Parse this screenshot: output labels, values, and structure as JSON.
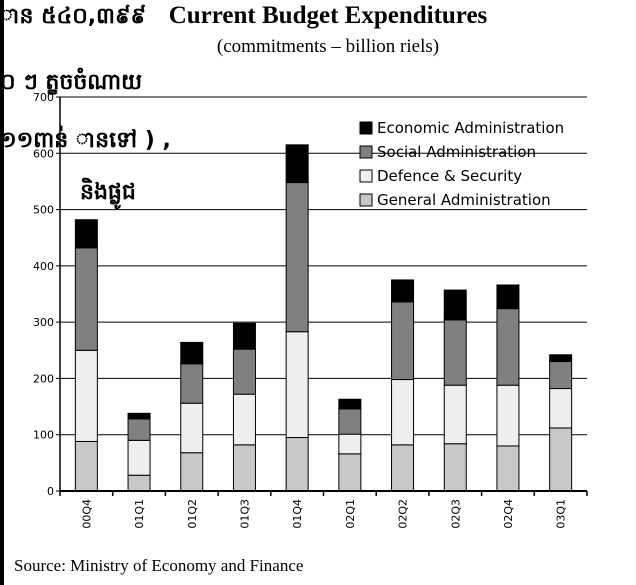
{
  "overlay": {
    "line1": "ាន ៥៤០,៣៩៩",
    "line2": "០ ៗ ត្ខចចំណាយ",
    "line3": "១១ពាន់   ានទៅ     ) ,",
    "line4": "និងផ្លូជ"
  },
  "source": "Source: Ministry of Economy and Finance",
  "colors": {
    "economic": "#000000",
    "social": "#808080",
    "defence": "#eeeeee",
    "general": "#c8c8c8"
  },
  "chart_data": {
    "type": "bar",
    "stacked": true,
    "title": "Current Budget Expenditures",
    "subtitle": "(commitments – billion riels)",
    "categories": [
      "00Q4",
      "01Q1",
      "01Q2",
      "01Q3",
      "01Q4",
      "02Q1",
      "02Q2",
      "02Q3",
      "02Q4",
      "03Q1"
    ],
    "series": [
      {
        "name": "General Administration",
        "values": [
          88,
          28,
          68,
          82,
          95,
          66,
          82,
          84,
          80,
          112
        ]
      },
      {
        "name": "Defence & Security",
        "values": [
          162,
          62,
          88,
          90,
          188,
          35,
          116,
          104,
          108,
          70
        ]
      },
      {
        "name": "Social Administration",
        "values": [
          182,
          38,
          70,
          80,
          265,
          45,
          138,
          116,
          136,
          48
        ]
      },
      {
        "name": "Economic Administration",
        "values": [
          50,
          10,
          38,
          46,
          67,
          17,
          39,
          53,
          42,
          12
        ]
      }
    ],
    "legend_order": [
      "Economic Administration",
      "Social Administration",
      "Defence & Security",
      "General Administration"
    ],
    "yticks": [
      "0",
      "100",
      "200",
      "300",
      "400",
      "500",
      "600",
      "700"
    ],
    "ylim": [
      0,
      700
    ],
    "grid": true,
    "legend": "top-right"
  }
}
